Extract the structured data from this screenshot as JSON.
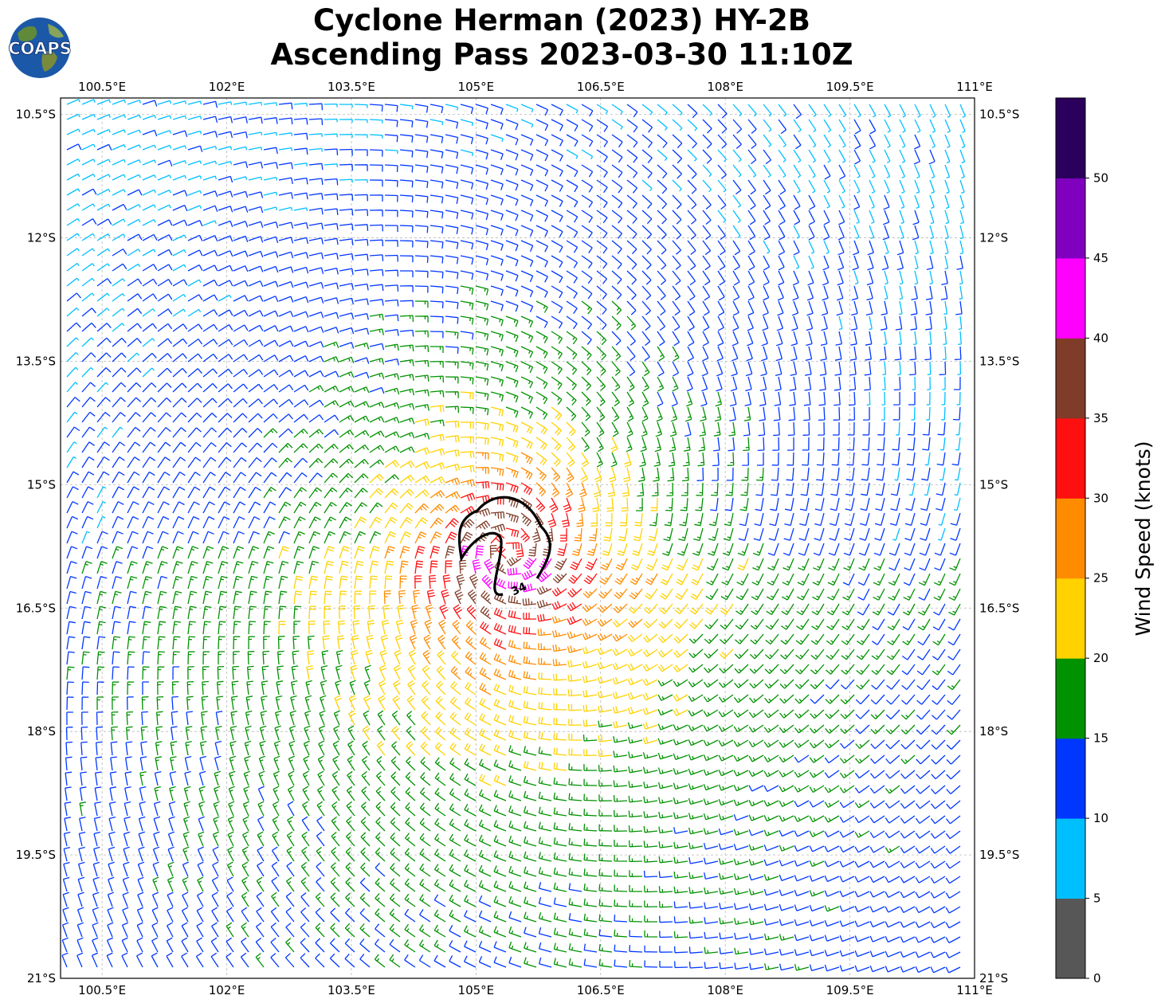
{
  "header": {
    "title_line1": "Cyclone Herman (2023) HY-2B",
    "title_line2": "Ascending Pass 2023-03-30 11:10Z",
    "logo_text": "COAPS"
  },
  "map": {
    "lon_range": [
      100.0,
      111.0
    ],
    "lat_range": [
      -21.0,
      -10.3
    ],
    "lon_ticks": [
      "100.5°E",
      "102°E",
      "103.5°E",
      "105°E",
      "106.5°E",
      "108°E",
      "109.5°E",
      "111°E"
    ],
    "lat_ticks": [
      "10.5°S",
      "12°S",
      "13.5°S",
      "15°S",
      "16.5°S",
      "18°S",
      "19.5°S",
      "21°S"
    ],
    "gridlines": "dashed",
    "wind_field": {
      "type": "cyclonic wind barbs",
      "center_lon": 105.4,
      "center_lat": -15.8,
      "max_speed_kt": 43
    },
    "contour": {
      "level": "34",
      "color": "#000000"
    }
  },
  "colorbar": {
    "title": "Wind Speed (knots)",
    "bounds": [
      0,
      5,
      10,
      15,
      20,
      25,
      30,
      35,
      40,
      45,
      50
    ],
    "tick_labels": [
      "0",
      "5",
      "10",
      "15",
      "20",
      "25",
      "30",
      "35",
      "40",
      "45",
      "50"
    ],
    "colors": [
      "#575757",
      "#00bfff",
      "#0037ff",
      "#009200",
      "#ffd200",
      "#ff8c00",
      "#ff1010",
      "#7f3c28",
      "#ff00ff",
      "#8000c0",
      "#2b005c"
    ]
  }
}
